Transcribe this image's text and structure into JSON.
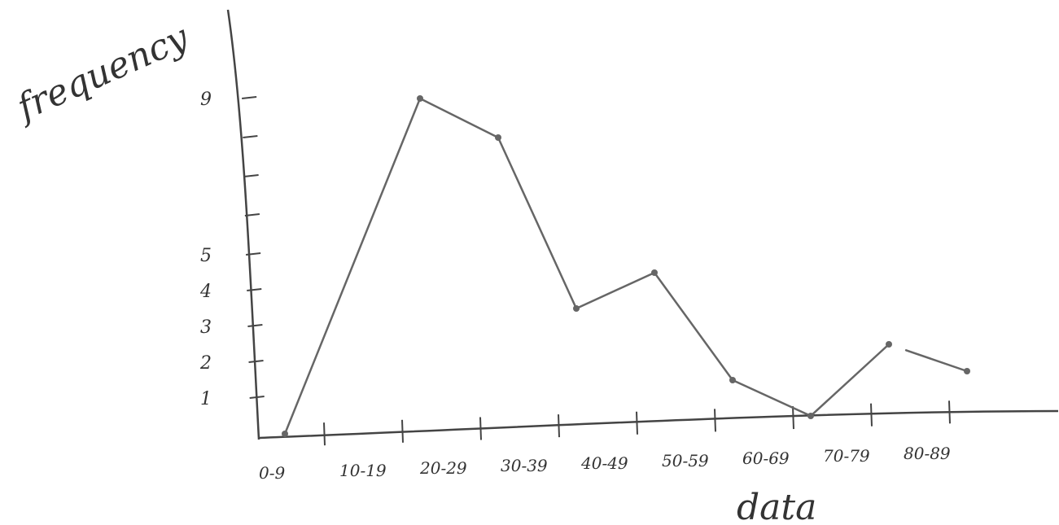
{
  "chart_data": {
    "type": "line",
    "title": "",
    "xlabel": "data",
    "ylabel": "frequency",
    "categories": [
      "0-9",
      "10-19",
      "20-29",
      "30-39",
      "40-49",
      "50-59",
      "60-69",
      "70-79",
      "80-89"
    ],
    "series": [
      {
        "values": [
          0,
          9,
          8,
          3.5,
          4.5,
          1.5,
          0.5,
          2.5,
          1.75
        ]
      }
    ],
    "segment_breaks_after_index": [
      7
    ],
    "y_tick_labels": [
      "1",
      "2",
      "3",
      "4",
      "5",
      "9"
    ],
    "y_tick_values": [
      1,
      2,
      3,
      4,
      5,
      9
    ],
    "ylim": [
      0,
      10
    ],
    "grid": false,
    "line_color": "#666666"
  }
}
